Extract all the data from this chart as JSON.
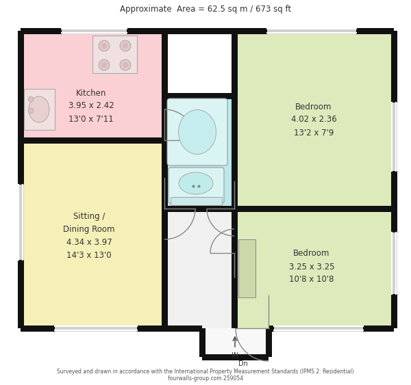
{
  "title": "Approximate  Area = 62.5 sq m / 673 sq ft",
  "footer_line1": "Surveyed and drawn in accordance with the International Property Measurement Standards (IPMS 2: Residential)",
  "footer_line2": "fourwalls-group.com 259054",
  "bg_color": "#ffffff",
  "wall_color": "#111111",
  "kitchen_color": "#fbd0d4",
  "sitting_color": "#f5efb8",
  "bath_color": "#bce8e8",
  "bed_color": "#ddeabc",
  "hall_color": "#f0f0f0",
  "entry_color": "#f8f8f8"
}
